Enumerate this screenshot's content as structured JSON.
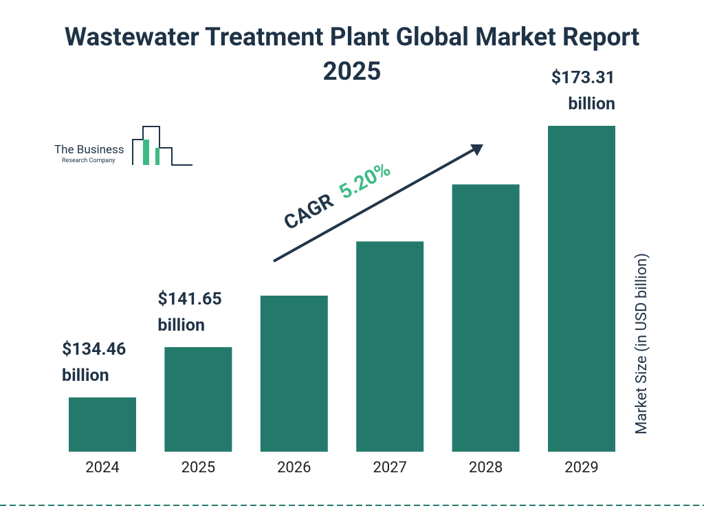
{
  "chart_data": {
    "type": "bar",
    "title": "Wastewater Treatment Plant Global Market Report 2025",
    "categories": [
      "2024",
      "2025",
      "2026",
      "2027",
      "2028",
      "2029"
    ],
    "values": [
      134.46,
      141.65,
      149.02,
      156.77,
      164.93,
      173.31
    ],
    "value_labels": [
      "$134.46 billion",
      "$141.65 billion",
      null,
      null,
      null,
      "$173.31 billion"
    ],
    "color": "#237a6b",
    "ylim": [
      126.7,
      180
    ],
    "y_axis_label": "Market Size (in USD billion)",
    "annotation": {
      "cagr_label": "CAGR",
      "cagr_value": "5.20%"
    }
  },
  "logo": {
    "line1": "The Business",
    "line2": "Research Company"
  }
}
